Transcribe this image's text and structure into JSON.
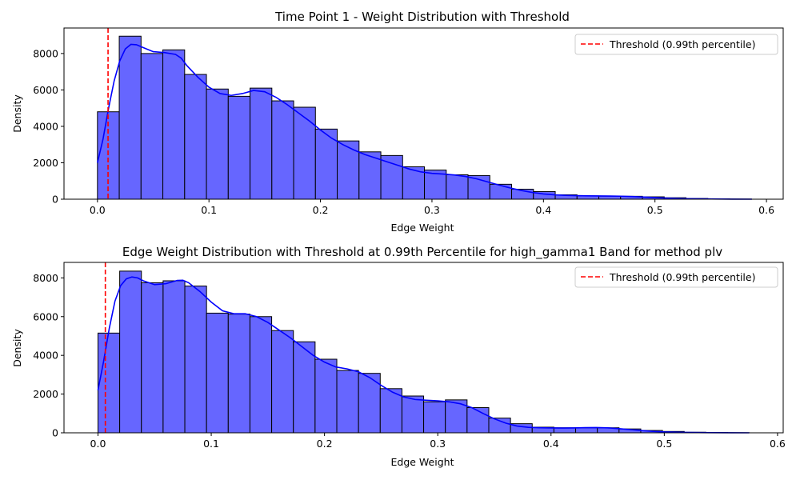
{
  "chart_data": [
    {
      "type": "bar",
      "title": "Time Point 1 - Weight Distribution with Threshold",
      "xlabel": "Edge Weight",
      "ylabel": "Density",
      "xlim": [
        -0.03,
        0.615
      ],
      "ylim": [
        0,
        9400
      ],
      "xticks": [
        0.0,
        0.1,
        0.2,
        0.3,
        0.4,
        0.5,
        0.6
      ],
      "xtick_labels": [
        "0.0",
        "0.1",
        "0.2",
        "0.3",
        "0.4",
        "0.5",
        "0.6"
      ],
      "yticks": [
        0,
        2000,
        4000,
        6000,
        8000
      ],
      "ytick_labels": [
        "0",
        "2000",
        "4000",
        "6000",
        "8000"
      ],
      "bins": {
        "start": 0.0,
        "width": 0.01955
      },
      "values": [
        4800,
        8950,
        8000,
        8200,
        6850,
        6050,
        5650,
        6100,
        5400,
        5050,
        3850,
        3200,
        2600,
        2400,
        1780,
        1600,
        1340,
        1300,
        820,
        550,
        420,
        240,
        180,
        170,
        160,
        130,
        80,
        40,
        20,
        8
      ],
      "kde": [
        [
          0.0,
          2000
        ],
        [
          0.005,
          3300
        ],
        [
          0.01,
          5000
        ],
        [
          0.015,
          6500
        ],
        [
          0.02,
          7600
        ],
        [
          0.025,
          8250
        ],
        [
          0.03,
          8500
        ],
        [
          0.035,
          8480
        ],
        [
          0.04,
          8350
        ],
        [
          0.05,
          8100
        ],
        [
          0.06,
          8050
        ],
        [
          0.07,
          7950
        ],
        [
          0.075,
          7750
        ],
        [
          0.08,
          7350
        ],
        [
          0.09,
          6700
        ],
        [
          0.1,
          6150
        ],
        [
          0.11,
          5800
        ],
        [
          0.12,
          5700
        ],
        [
          0.13,
          5800
        ],
        [
          0.14,
          5970
        ],
        [
          0.15,
          5900
        ],
        [
          0.16,
          5600
        ],
        [
          0.17,
          5200
        ],
        [
          0.18,
          4750
        ],
        [
          0.19,
          4300
        ],
        [
          0.2,
          3800
        ],
        [
          0.21,
          3350
        ],
        [
          0.22,
          3000
        ],
        [
          0.23,
          2700
        ],
        [
          0.24,
          2450
        ],
        [
          0.25,
          2250
        ],
        [
          0.26,
          2050
        ],
        [
          0.27,
          1850
        ],
        [
          0.28,
          1650
        ],
        [
          0.29,
          1500
        ],
        [
          0.3,
          1420
        ],
        [
          0.31,
          1380
        ],
        [
          0.32,
          1330
        ],
        [
          0.33,
          1250
        ],
        [
          0.34,
          1120
        ],
        [
          0.35,
          950
        ],
        [
          0.36,
          780
        ],
        [
          0.37,
          620
        ],
        [
          0.38,
          480
        ],
        [
          0.39,
          370
        ],
        [
          0.4,
          290
        ],
        [
          0.41,
          240
        ],
        [
          0.42,
          210
        ],
        [
          0.43,
          195
        ],
        [
          0.44,
          185
        ],
        [
          0.45,
          180
        ],
        [
          0.46,
          175
        ],
        [
          0.47,
          165
        ],
        [
          0.48,
          145
        ],
        [
          0.49,
          120
        ],
        [
          0.5,
          90
        ],
        [
          0.51,
          60
        ],
        [
          0.52,
          40
        ],
        [
          0.53,
          25
        ],
        [
          0.55,
          12
        ],
        [
          0.57,
          5
        ],
        [
          0.587,
          0
        ]
      ],
      "threshold": {
        "x": 0.0095,
        "label": "Threshold (0.99th percentile)",
        "color": "#ff0000"
      },
      "bar_color": "#6666ff",
      "kde_color": "#0000ff",
      "legend": "top-right",
      "grid": false
    },
    {
      "type": "bar",
      "title": "Edge Weight Distribution with Threshold at 0.99th Percentile for high_gamma1 Band for method plv",
      "xlabel": "Edge Weight",
      "ylabel": "Density",
      "xlim": [
        -0.03,
        0.605
      ],
      "ylim": [
        0,
        8800
      ],
      "xticks": [
        0.0,
        0.1,
        0.2,
        0.3,
        0.4,
        0.5,
        0.6
      ],
      "xtick_labels": [
        "0.0",
        "0.1",
        "0.2",
        "0.3",
        "0.4",
        "0.5",
        "0.6"
      ],
      "yticks": [
        0,
        2000,
        4000,
        6000,
        8000
      ],
      "ytick_labels": [
        "0",
        "2000",
        "4000",
        "6000",
        "8000"
      ],
      "bins": {
        "start": 0.0,
        "width": 0.01917
      },
      "values": [
        5150,
        8350,
        7750,
        7850,
        7580,
        6180,
        6130,
        6000,
        5280,
        4700,
        3800,
        3220,
        3070,
        2280,
        1900,
        1600,
        1700,
        1300,
        760,
        470,
        290,
        260,
        260,
        260,
        200,
        120,
        70,
        30,
        12,
        5
      ],
      "kde": [
        [
          0.0,
          2200
        ],
        [
          0.005,
          3700
        ],
        [
          0.01,
          5400
        ],
        [
          0.015,
          6800
        ],
        [
          0.02,
          7600
        ],
        [
          0.025,
          7950
        ],
        [
          0.03,
          8050
        ],
        [
          0.035,
          8000
        ],
        [
          0.04,
          7850
        ],
        [
          0.05,
          7650
        ],
        [
          0.06,
          7700
        ],
        [
          0.07,
          7870
        ],
        [
          0.075,
          7880
        ],
        [
          0.08,
          7750
        ],
        [
          0.09,
          7300
        ],
        [
          0.1,
          6750
        ],
        [
          0.11,
          6300
        ],
        [
          0.12,
          6150
        ],
        [
          0.13,
          6150
        ],
        [
          0.14,
          6000
        ],
        [
          0.15,
          5700
        ],
        [
          0.16,
          5300
        ],
        [
          0.17,
          4900
        ],
        [
          0.18,
          4450
        ],
        [
          0.19,
          4000
        ],
        [
          0.2,
          3650
        ],
        [
          0.21,
          3400
        ],
        [
          0.22,
          3300
        ],
        [
          0.23,
          3150
        ],
        [
          0.24,
          2850
        ],
        [
          0.25,
          2450
        ],
        [
          0.26,
          2100
        ],
        [
          0.27,
          1850
        ],
        [
          0.28,
          1720
        ],
        [
          0.29,
          1680
        ],
        [
          0.3,
          1650
        ],
        [
          0.31,
          1600
        ],
        [
          0.32,
          1500
        ],
        [
          0.33,
          1300
        ],
        [
          0.34,
          1000
        ],
        [
          0.35,
          720
        ],
        [
          0.36,
          500
        ],
        [
          0.37,
          350
        ],
        [
          0.38,
          280
        ],
        [
          0.39,
          260
        ],
        [
          0.4,
          250
        ],
        [
          0.41,
          245
        ],
        [
          0.42,
          250
        ],
        [
          0.43,
          265
        ],
        [
          0.44,
          270
        ],
        [
          0.45,
          255
        ],
        [
          0.46,
          215
        ],
        [
          0.47,
          165
        ],
        [
          0.48,
          115
        ],
        [
          0.49,
          75
        ],
        [
          0.5,
          45
        ],
        [
          0.52,
          20
        ],
        [
          0.54,
          8
        ],
        [
          0.56,
          3
        ],
        [
          0.575,
          0
        ]
      ],
      "threshold": {
        "x": 0.0065,
        "label": "Threshold (0.99th percentile)",
        "color": "#ff0000"
      },
      "bar_color": "#6666ff",
      "kde_color": "#0000ff",
      "legend": "top-right",
      "grid": false
    }
  ]
}
